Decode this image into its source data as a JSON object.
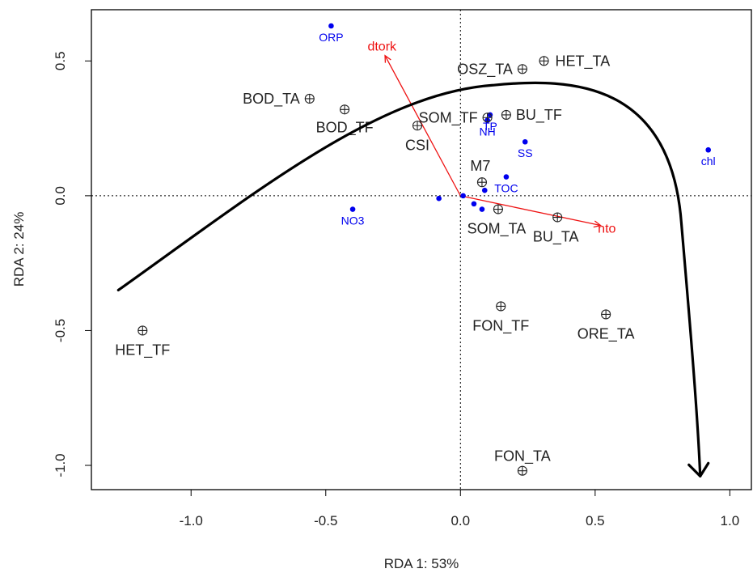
{
  "chart_data": {
    "type": "scatter",
    "xlabel": "RDA 1: 53%",
    "ylabel": "RDA  2: 24%",
    "xlim": [
      -1.37,
      1.08
    ],
    "ylim": [
      -1.09,
      0.69
    ],
    "x_ticks": [
      -1.0,
      -0.5,
      0.0,
      0.5,
      1.0
    ],
    "x_tick_labels": [
      "-1.0",
      "-0.5",
      "0.0",
      "0.5",
      "1.0"
    ],
    "y_ticks": [
      -1.0,
      -0.5,
      0.0,
      0.5
    ],
    "y_tick_labels": [
      "-1.0",
      "-0.5",
      "0.0",
      "0.5"
    ],
    "sites": [
      {
        "label": "HET_TA",
        "x": 0.31,
        "y": 0.5
      },
      {
        "label": "OSZ_TA",
        "x": 0.23,
        "y": 0.47
      },
      {
        "label": "BOD_TA",
        "x": -0.56,
        "y": 0.36
      },
      {
        "label": "BOD_TF",
        "x": -0.43,
        "y": 0.32
      },
      {
        "label": "SOM_TF",
        "x": 0.1,
        "y": 0.29
      },
      {
        "label": "BU_TF",
        "x": 0.17,
        "y": 0.3
      },
      {
        "label": "CSI",
        "x": -0.16,
        "y": 0.26
      },
      {
        "label": "M7",
        "x": 0.08,
        "y": 0.05
      },
      {
        "label": "SOM_TA",
        "x": 0.14,
        "y": -0.05
      },
      {
        "label": "BU_TA",
        "x": 0.36,
        "y": -0.08
      },
      {
        "label": "FON_TF",
        "x": 0.15,
        "y": -0.41
      },
      {
        "label": "ORE_TA",
        "x": 0.54,
        "y": -0.44
      },
      {
        "label": "HET_TF",
        "x": -1.18,
        "y": -0.5
      },
      {
        "label": "FON_TA",
        "x": 0.23,
        "y": -1.02
      }
    ],
    "species": [
      {
        "label": "ORP",
        "x": -0.48,
        "y": 0.63
      },
      {
        "label": "TP",
        "x": 0.11,
        "y": 0.3
      },
      {
        "label": "NH",
        "x": 0.1,
        "y": 0.28
      },
      {
        "label": "SS",
        "x": 0.24,
        "y": 0.2
      },
      {
        "label": "chl",
        "x": 0.92,
        "y": 0.17
      },
      {
        "label": "TOC",
        "x": 0.17,
        "y": 0.07
      },
      {
        "label": "NO3",
        "x": -0.4,
        "y": -0.05
      },
      {
        "label": "",
        "x": 0.09,
        "y": 0.02
      },
      {
        "label": "",
        "x": -0.08,
        "y": -0.01
      },
      {
        "label": "",
        "x": 0.01,
        "y": 0.0
      },
      {
        "label": "",
        "x": 0.05,
        "y": -0.03
      },
      {
        "label": "",
        "x": 0.08,
        "y": -0.05
      }
    ],
    "vectors": [
      {
        "label": "dtork",
        "x": -0.28,
        "y": 0.52
      },
      {
        "label": "nto",
        "x": 0.52,
        "y": -0.11
      }
    ],
    "colors": {
      "site": "#222222",
      "species": "#0000ee",
      "vector": "#ee1111",
      "curve": "#000000"
    }
  }
}
